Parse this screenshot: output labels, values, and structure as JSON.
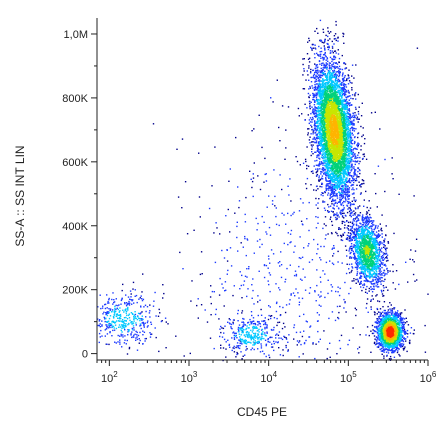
{
  "chart_data": {
    "type": "scatter",
    "subtype": "flow-cytometry-density-dot-plot",
    "title": "",
    "xlabel": "CD45 PE",
    "ylabel": "SS-A :: SS INT LIN",
    "x_scale": "log",
    "y_scale": "linear",
    "xlim": [
      70,
      1000000
    ],
    "ylim": [
      -20000,
      1050000
    ],
    "x_ticks": [
      {
        "value": 100,
        "base": "10",
        "exp": "2"
      },
      {
        "value": 1000,
        "base": "10",
        "exp": "3"
      },
      {
        "value": 10000,
        "base": "10",
        "exp": "4"
      },
      {
        "value": 100000,
        "base": "10",
        "exp": "5"
      },
      {
        "value": 1000000,
        "base": "10",
        "exp": "6"
      }
    ],
    "y_ticks": [
      {
        "value": 0,
        "label": "0"
      },
      {
        "value": 200000,
        "label": "200K"
      },
      {
        "value": 400000,
        "label": "400K"
      },
      {
        "value": 600000,
        "label": "600K"
      },
      {
        "value": 800000,
        "label": "800K"
      },
      {
        "value": 1000000,
        "label": "1,0M"
      }
    ],
    "grid": false,
    "legend": "none",
    "color_scale": [
      "#00008b",
      "#1e3cff",
      "#00c8ff",
      "#00d27a",
      "#c8e600",
      "#ffb400",
      "#ff2a00"
    ],
    "populations": [
      {
        "x_center": 65000,
        "x_log_sd": 0.12,
        "y_center": 700000,
        "y_sd": 110000,
        "count": 5200,
        "rotation": -0.35,
        "density_peak": 0.75
      },
      {
        "x_center": 170000,
        "x_log_sd": 0.1,
        "y_center": 320000,
        "y_sd": 55000,
        "count": 1500,
        "rotation": -0.3,
        "density_peak": 0.55
      },
      {
        "x_center": 330000,
        "x_log_sd": 0.08,
        "y_center": 70000,
        "y_sd": 28000,
        "count": 1800,
        "rotation": 0.0,
        "density_peak": 1.0
      },
      {
        "x_center": 6000,
        "x_log_sd": 0.18,
        "y_center": 60000,
        "y_sd": 30000,
        "count": 320,
        "rotation": 0.0,
        "density_peak": 0.35
      },
      {
        "x_center": 150,
        "x_log_sd": 0.22,
        "y_center": 110000,
        "y_sd": 45000,
        "count": 420,
        "rotation": 0.0,
        "density_peak": 0.3
      },
      {
        "x_center": 20000,
        "x_log_sd": 0.7,
        "y_center": 250000,
        "y_sd": 220000,
        "count": 650,
        "rotation": 0.0,
        "density_peak": 0.1
      }
    ]
  }
}
